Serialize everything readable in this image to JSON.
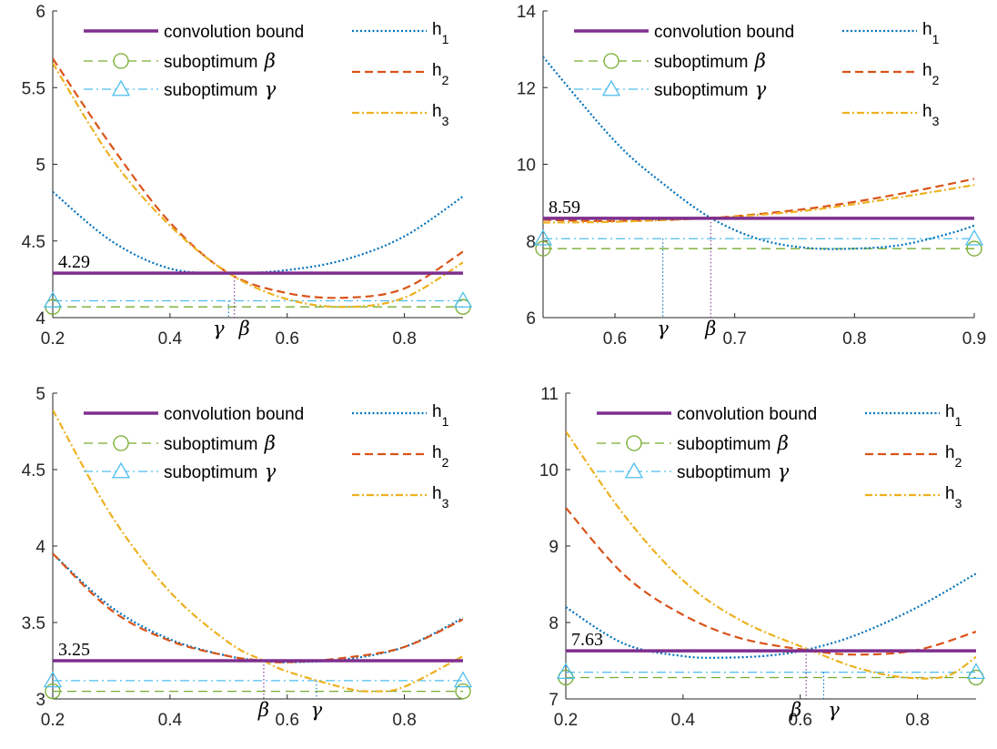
{
  "colors": {
    "bound": "#7E2F8E",
    "beta": "#77AC30",
    "gamma": "#4DBEEE",
    "h1": "#0072BD",
    "h2": "#D95319",
    "h3": "#EDB120",
    "axis": "#262626"
  },
  "legend": {
    "bound": "convolution bound",
    "beta_prefix": "suboptimum ",
    "beta_sym": "β",
    "gamma_prefix": "suboptimum ",
    "gamma_sym": "γ",
    "h": "h",
    "sub1": "1",
    "sub2": "2",
    "sub3": "3"
  },
  "chart_data": [
    {
      "type": "line",
      "xlim": [
        0.2,
        0.9
      ],
      "ylim": [
        4,
        6
      ],
      "xticks": [
        "0.2",
        "0.4",
        "0.6",
        "0.8"
      ],
      "xtick_values": [
        0.2,
        0.4,
        0.6,
        0.8
      ],
      "yticks": [
        "4",
        "4.5",
        "5",
        "5.5",
        "6"
      ],
      "ytick_values": [
        4,
        4.5,
        5,
        5.5,
        6
      ],
      "bound_value": 4.29,
      "bound_label": "4.29",
      "beta_value": 4.07,
      "gamma_value": 4.11,
      "beta_x": 0.51,
      "gamma_x": 0.5,
      "markers": [
        "γ",
        "β"
      ],
      "series": [
        {
          "name": "h",
          "sub": "1",
          "x": [
            0.2,
            0.3,
            0.4,
            0.5,
            0.6,
            0.7,
            0.8,
            0.9
          ],
          "y": [
            4.82,
            4.5,
            4.32,
            4.29,
            4.31,
            4.38,
            4.53,
            4.79
          ]
        },
        {
          "name": "h",
          "sub": "2",
          "x": [
            0.2,
            0.3,
            0.4,
            0.5,
            0.6,
            0.7,
            0.8,
            0.9
          ],
          "y": [
            5.69,
            5.12,
            4.62,
            4.29,
            4.16,
            4.13,
            4.19,
            4.43
          ]
        },
        {
          "name": "h",
          "sub": "3",
          "x": [
            0.2,
            0.3,
            0.4,
            0.5,
            0.6,
            0.7,
            0.8,
            0.9
          ],
          "y": [
            5.66,
            5.04,
            4.6,
            4.29,
            4.12,
            4.07,
            4.13,
            4.36
          ]
        }
      ]
    },
    {
      "type": "line",
      "xlim": [
        0.54,
        0.9
      ],
      "ylim": [
        6,
        14
      ],
      "xticks": [
        "0.6",
        "0.7",
        "0.8",
        "0.9"
      ],
      "xtick_values": [
        0.6,
        0.7,
        0.8,
        0.9
      ],
      "yticks": [
        "6",
        "8",
        "10",
        "12",
        "14"
      ],
      "ytick_values": [
        6,
        8,
        10,
        12,
        14
      ],
      "bound_value": 8.59,
      "bound_label": "8.59",
      "beta_value": 7.8,
      "gamma_value": 8.06,
      "beta_x": 0.68,
      "gamma_x": 0.64,
      "markers": [
        "γ",
        "β"
      ],
      "series": [
        {
          "name": "h",
          "sub": "1",
          "x": [
            0.54,
            0.6,
            0.64,
            0.68,
            0.72,
            0.76,
            0.8,
            0.84,
            0.88,
            0.9
          ],
          "y": [
            12.8,
            10.6,
            9.5,
            8.6,
            8.05,
            7.82,
            7.8,
            7.9,
            8.2,
            8.4
          ]
        },
        {
          "name": "h",
          "sub": "2",
          "x": [
            0.54,
            0.6,
            0.68,
            0.75,
            0.8,
            0.85,
            0.9
          ],
          "y": [
            8.55,
            8.52,
            8.6,
            8.8,
            9.02,
            9.3,
            9.62
          ]
        },
        {
          "name": "h",
          "sub": "3",
          "x": [
            0.54,
            0.6,
            0.68,
            0.75,
            0.8,
            0.85,
            0.9
          ],
          "y": [
            8.48,
            8.5,
            8.6,
            8.76,
            8.96,
            9.2,
            9.46
          ]
        }
      ]
    },
    {
      "type": "line",
      "xlim": [
        0.2,
        0.9
      ],
      "ylim": [
        3,
        5
      ],
      "xticks": [
        "0.2",
        "0.4",
        "0.6",
        "0.8"
      ],
      "xtick_values": [
        0.2,
        0.4,
        0.6,
        0.8
      ],
      "yticks": [
        "3",
        "3.5",
        "4",
        "4.5",
        "5"
      ],
      "ytick_values": [
        3,
        3.5,
        4,
        4.5,
        5
      ],
      "bound_value": 3.25,
      "bound_label": "3.25",
      "beta_value": 3.05,
      "gamma_value": 3.12,
      "beta_x": 0.56,
      "gamma_x": 0.65,
      "markers": [
        "β",
        "γ"
      ],
      "series": [
        {
          "name": "h",
          "sub": "1",
          "x": [
            0.2,
            0.3,
            0.4,
            0.5,
            0.56,
            0.6,
            0.7,
            0.8,
            0.9
          ],
          "y": [
            3.95,
            3.6,
            3.39,
            3.28,
            3.25,
            3.24,
            3.26,
            3.34,
            3.53
          ]
        },
        {
          "name": "h",
          "sub": "2",
          "x": [
            0.2,
            0.3,
            0.4,
            0.5,
            0.56,
            0.6,
            0.7,
            0.8,
            0.9
          ],
          "y": [
            3.95,
            3.58,
            3.38,
            3.28,
            3.25,
            3.24,
            3.27,
            3.34,
            3.52
          ]
        },
        {
          "name": "h",
          "sub": "3",
          "x": [
            0.2,
            0.3,
            0.4,
            0.5,
            0.56,
            0.6,
            0.7,
            0.75,
            0.8,
            0.9
          ],
          "y": [
            4.89,
            4.2,
            3.7,
            3.37,
            3.25,
            3.18,
            3.07,
            3.05,
            3.08,
            3.28
          ]
        }
      ]
    },
    {
      "type": "line",
      "xlim": [
        0.2,
        0.9
      ],
      "ylim": [
        7,
        11
      ],
      "xticks": [
        "0.2",
        "0.4",
        "0.6",
        "0.8"
      ],
      "xtick_values": [
        0.2,
        0.4,
        0.6,
        0.8
      ],
      "yticks": [
        "7",
        "8",
        "9",
        "10",
        "11"
      ],
      "ytick_values": [
        7,
        8,
        9,
        10,
        11
      ],
      "bound_value": 7.63,
      "bound_label": "7.63",
      "beta_value": 7.28,
      "gamma_value": 7.35,
      "beta_x": 0.61,
      "gamma_x": 0.64,
      "markers": [
        "β",
        "γ"
      ],
      "series": [
        {
          "name": "h",
          "sub": "1",
          "x": [
            0.2,
            0.3,
            0.4,
            0.47,
            0.55,
            0.62,
            0.7,
            0.8,
            0.9
          ],
          "y": [
            8.2,
            7.72,
            7.56,
            7.54,
            7.57,
            7.66,
            7.85,
            8.2,
            8.64
          ]
        },
        {
          "name": "h",
          "sub": "2",
          "x": [
            0.2,
            0.3,
            0.4,
            0.5,
            0.62,
            0.7,
            0.8,
            0.9
          ],
          "y": [
            9.5,
            8.62,
            8.1,
            7.79,
            7.63,
            7.58,
            7.64,
            7.88
          ]
        },
        {
          "name": "h",
          "sub": "3",
          "x": [
            0.2,
            0.3,
            0.4,
            0.5,
            0.62,
            0.7,
            0.78,
            0.85,
            0.9
          ],
          "y": [
            10.5,
            9.4,
            8.55,
            8.02,
            7.63,
            7.4,
            7.28,
            7.3,
            7.55
          ]
        }
      ]
    }
  ]
}
